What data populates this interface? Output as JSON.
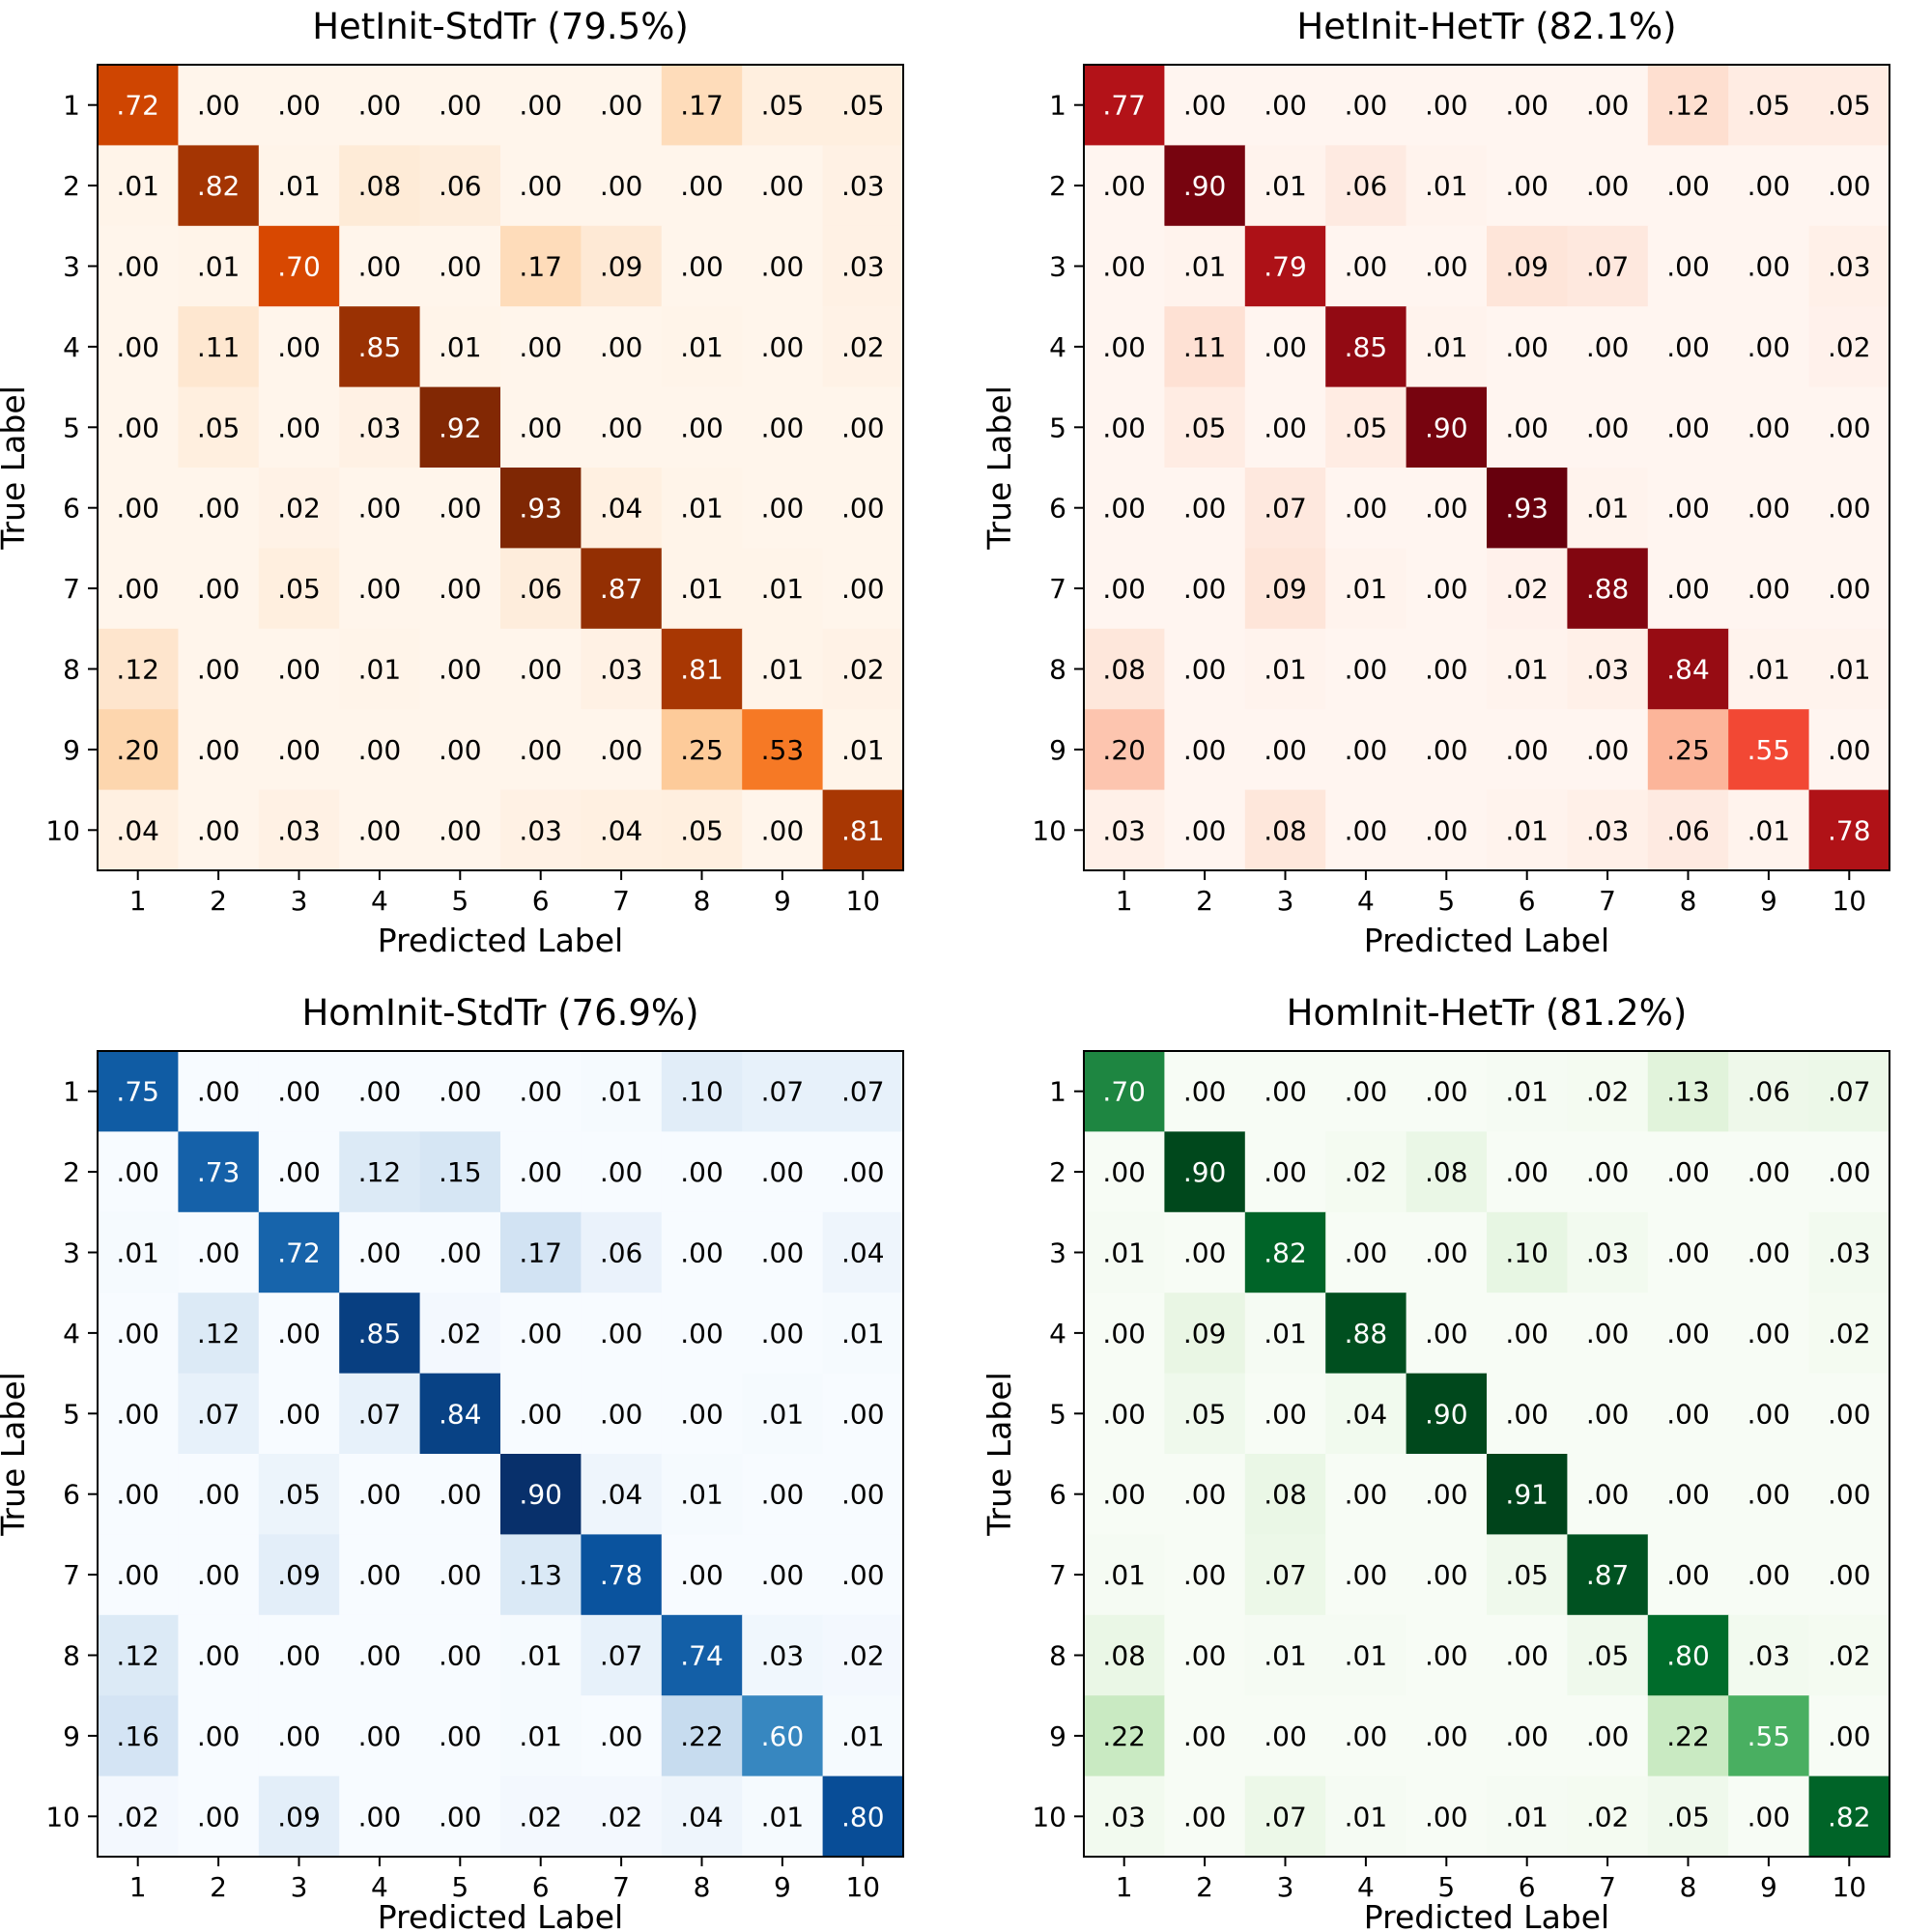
{
  "chart_data": [
    {
      "type": "heatmap",
      "title": "HetInit-StdTr (79.5%)",
      "xlabel": "Predicted Label",
      "ylabel": "True Label",
      "x_categories": [
        "1",
        "2",
        "3",
        "4",
        "5",
        "6",
        "7",
        "8",
        "9",
        "10"
      ],
      "y_categories": [
        "1",
        "2",
        "3",
        "4",
        "5",
        "6",
        "7",
        "8",
        "9",
        "10"
      ],
      "colormap": "Oranges",
      "color_low": "#fff5eb",
      "color_high": "#7f2704",
      "value_range": [
        0,
        1
      ],
      "values": [
        [
          0.72,
          0.0,
          0.0,
          0.0,
          0.0,
          0.0,
          0.0,
          0.17,
          0.05,
          0.05
        ],
        [
          0.01,
          0.82,
          0.01,
          0.08,
          0.06,
          0.0,
          0.0,
          0.0,
          0.0,
          0.03
        ],
        [
          0.0,
          0.01,
          0.7,
          0.0,
          0.0,
          0.17,
          0.09,
          0.0,
          0.0,
          0.03
        ],
        [
          0.0,
          0.11,
          0.0,
          0.85,
          0.01,
          0.0,
          0.0,
          0.01,
          0.0,
          0.02
        ],
        [
          0.0,
          0.05,
          0.0,
          0.03,
          0.92,
          0.0,
          0.0,
          0.0,
          0.0,
          0.0
        ],
        [
          0.0,
          0.0,
          0.02,
          0.0,
          0.0,
          0.93,
          0.04,
          0.01,
          0.0,
          0.0
        ],
        [
          0.0,
          0.0,
          0.05,
          0.0,
          0.0,
          0.06,
          0.87,
          0.01,
          0.01,
          0.0
        ],
        [
          0.12,
          0.0,
          0.0,
          0.01,
          0.0,
          0.0,
          0.03,
          0.81,
          0.01,
          0.02
        ],
        [
          0.2,
          0.0,
          0.0,
          0.0,
          0.0,
          0.0,
          0.0,
          0.25,
          0.53,
          0.01
        ],
        [
          0.04,
          0.0,
          0.03,
          0.0,
          0.0,
          0.03,
          0.04,
          0.05,
          0.0,
          0.81
        ]
      ]
    },
    {
      "type": "heatmap",
      "title": "HetInit-HetTr (82.1%)",
      "xlabel": "Predicted Label",
      "ylabel": "True Label",
      "x_categories": [
        "1",
        "2",
        "3",
        "4",
        "5",
        "6",
        "7",
        "8",
        "9",
        "10"
      ],
      "y_categories": [
        "1",
        "2",
        "3",
        "4",
        "5",
        "6",
        "7",
        "8",
        "9",
        "10"
      ],
      "colormap": "Reds",
      "color_low": "#fff5f0",
      "color_high": "#67000d",
      "value_range": [
        0,
        1
      ],
      "values": [
        [
          0.77,
          0.0,
          0.0,
          0.0,
          0.0,
          0.0,
          0.0,
          0.12,
          0.05,
          0.05
        ],
        [
          0.0,
          0.9,
          0.01,
          0.06,
          0.01,
          0.0,
          0.0,
          0.0,
          0.0,
          0.0
        ],
        [
          0.0,
          0.01,
          0.79,
          0.0,
          0.0,
          0.09,
          0.07,
          0.0,
          0.0,
          0.03
        ],
        [
          0.0,
          0.11,
          0.0,
          0.85,
          0.01,
          0.0,
          0.0,
          0.0,
          0.0,
          0.02
        ],
        [
          0.0,
          0.05,
          0.0,
          0.05,
          0.9,
          0.0,
          0.0,
          0.0,
          0.0,
          0.0
        ],
        [
          0.0,
          0.0,
          0.07,
          0.0,
          0.0,
          0.93,
          0.01,
          0.0,
          0.0,
          0.0
        ],
        [
          0.0,
          0.0,
          0.09,
          0.01,
          0.0,
          0.02,
          0.88,
          0.0,
          0.0,
          0.0
        ],
        [
          0.08,
          0.0,
          0.01,
          0.0,
          0.0,
          0.01,
          0.03,
          0.84,
          0.01,
          0.01
        ],
        [
          0.2,
          0.0,
          0.0,
          0.0,
          0.0,
          0.0,
          0.0,
          0.25,
          0.55,
          0.0
        ],
        [
          0.03,
          0.0,
          0.08,
          0.0,
          0.0,
          0.01,
          0.03,
          0.06,
          0.01,
          0.78
        ]
      ]
    },
    {
      "type": "heatmap",
      "title": "HomInit-StdTr (76.9%)",
      "xlabel": "Predicted Label",
      "ylabel": "True Label",
      "x_categories": [
        "1",
        "2",
        "3",
        "4",
        "5",
        "6",
        "7",
        "8",
        "9",
        "10"
      ],
      "y_categories": [
        "1",
        "2",
        "3",
        "4",
        "5",
        "6",
        "7",
        "8",
        "9",
        "10"
      ],
      "colormap": "Blues",
      "color_low": "#f7fbff",
      "color_high": "#08306b",
      "value_range": [
        0,
        1
      ],
      "values": [
        [
          0.75,
          0.0,
          0.0,
          0.0,
          0.0,
          0.0,
          0.01,
          0.1,
          0.07,
          0.07
        ],
        [
          0.0,
          0.73,
          0.0,
          0.12,
          0.15,
          0.0,
          0.0,
          0.0,
          0.0,
          0.0
        ],
        [
          0.01,
          0.0,
          0.72,
          0.0,
          0.0,
          0.17,
          0.06,
          0.0,
          0.0,
          0.04
        ],
        [
          0.0,
          0.12,
          0.0,
          0.85,
          0.02,
          0.0,
          0.0,
          0.0,
          0.0,
          0.01
        ],
        [
          0.0,
          0.07,
          0.0,
          0.07,
          0.84,
          0.0,
          0.0,
          0.0,
          0.01,
          0.0
        ],
        [
          0.0,
          0.0,
          0.05,
          0.0,
          0.0,
          0.9,
          0.04,
          0.01,
          0.0,
          0.0
        ],
        [
          0.0,
          0.0,
          0.09,
          0.0,
          0.0,
          0.13,
          0.78,
          0.0,
          0.0,
          0.0
        ],
        [
          0.12,
          0.0,
          0.0,
          0.0,
          0.0,
          0.01,
          0.07,
          0.74,
          0.03,
          0.02
        ],
        [
          0.16,
          0.0,
          0.0,
          0.0,
          0.0,
          0.01,
          0.0,
          0.22,
          0.6,
          0.01
        ],
        [
          0.02,
          0.0,
          0.09,
          0.0,
          0.0,
          0.02,
          0.02,
          0.04,
          0.01,
          0.8
        ]
      ]
    },
    {
      "type": "heatmap",
      "title": "HomInit-HetTr (81.2%)",
      "xlabel": "Predicted Label",
      "ylabel": "True Label",
      "x_categories": [
        "1",
        "2",
        "3",
        "4",
        "5",
        "6",
        "7",
        "8",
        "9",
        "10"
      ],
      "y_categories": [
        "1",
        "2",
        "3",
        "4",
        "5",
        "6",
        "7",
        "8",
        "9",
        "10"
      ],
      "colormap": "Greens",
      "color_low": "#f7fcf5",
      "color_high": "#00441b",
      "value_range": [
        0,
        1
      ],
      "values": [
        [
          0.7,
          0.0,
          0.0,
          0.0,
          0.0,
          0.01,
          0.02,
          0.13,
          0.06,
          0.07
        ],
        [
          0.0,
          0.9,
          0.0,
          0.02,
          0.08,
          0.0,
          0.0,
          0.0,
          0.0,
          0.0
        ],
        [
          0.01,
          0.0,
          0.82,
          0.0,
          0.0,
          0.1,
          0.03,
          0.0,
          0.0,
          0.03
        ],
        [
          0.0,
          0.09,
          0.01,
          0.88,
          0.0,
          0.0,
          0.0,
          0.0,
          0.0,
          0.02
        ],
        [
          0.0,
          0.05,
          0.0,
          0.04,
          0.9,
          0.0,
          0.0,
          0.0,
          0.0,
          0.0
        ],
        [
          0.0,
          0.0,
          0.08,
          0.0,
          0.0,
          0.91,
          0.0,
          0.0,
          0.0,
          0.0
        ],
        [
          0.01,
          0.0,
          0.07,
          0.0,
          0.0,
          0.05,
          0.87,
          0.0,
          0.0,
          0.0
        ],
        [
          0.08,
          0.0,
          0.01,
          0.01,
          0.0,
          0.0,
          0.05,
          0.8,
          0.03,
          0.02
        ],
        [
          0.22,
          0.0,
          0.0,
          0.0,
          0.0,
          0.0,
          0.0,
          0.22,
          0.55,
          0.0
        ],
        [
          0.03,
          0.0,
          0.07,
          0.01,
          0.0,
          0.01,
          0.02,
          0.05,
          0.0,
          0.82
        ]
      ]
    }
  ]
}
